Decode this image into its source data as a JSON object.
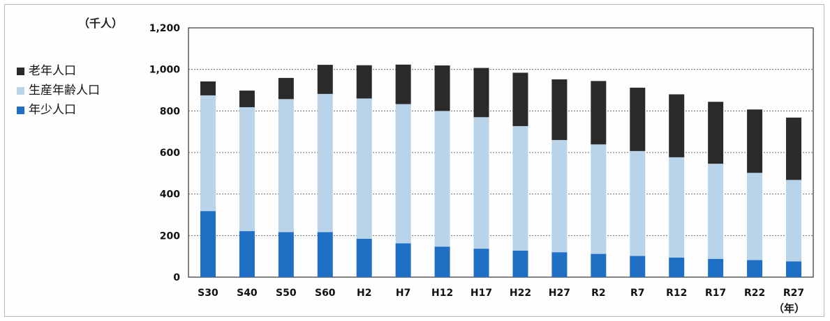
{
  "chart_data": {
    "type": "bar",
    "stacked": true,
    "unit_label": "（千人）",
    "x_suffix": "（年）",
    "categories": [
      "S30",
      "S40",
      "S50",
      "S60",
      "H2",
      "H7",
      "H12",
      "H17",
      "H22",
      "H27",
      "R2",
      "R7",
      "R12",
      "R17",
      "R22",
      "R27"
    ],
    "series": [
      {
        "name": "年少人口",
        "color": "#1f6fc5",
        "values": [
          318,
          222,
          217,
          217,
          185,
          163,
          147,
          137,
          128,
          120,
          112,
          102,
          94,
          88,
          82,
          76
        ]
      },
      {
        "name": "生産年齢人口",
        "color": "#b9d3e8",
        "values": [
          557,
          596,
          640,
          665,
          675,
          670,
          653,
          633,
          599,
          540,
          527,
          505,
          483,
          458,
          420,
          392
        ]
      },
      {
        "name": "老年人口",
        "color": "#2a2a2a",
        "values": [
          67,
          80,
          102,
          140,
          160,
          190,
          219,
          237,
          257,
          292,
          305,
          305,
          303,
          298,
          305,
          300
        ]
      }
    ],
    "ylim": [
      0,
      1200
    ],
    "yticks": [
      0,
      200,
      400,
      600,
      800,
      1000,
      1200
    ],
    "ytick_labels": [
      "0",
      "200",
      "400",
      "600",
      "800",
      "1,000",
      "1,200"
    ],
    "grid": true,
    "legend_position": "left"
  },
  "legend": [
    {
      "label": "老年人口",
      "color": "#2a2a2a"
    },
    {
      "label": "生産年齢人口",
      "color": "#b9d3e8"
    },
    {
      "label": "年少人口",
      "color": "#1f6fc5"
    }
  ]
}
